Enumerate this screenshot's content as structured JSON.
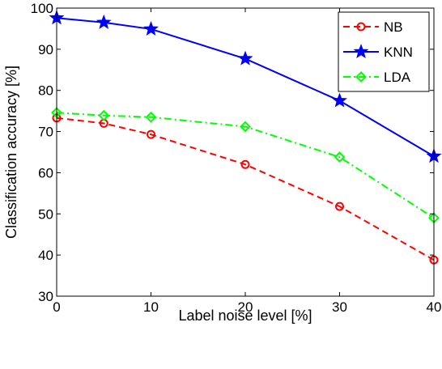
{
  "chart_data": {
    "type": "line",
    "xlabel": "Label noise level [%]",
    "ylabel": "Classification accuracy [%]",
    "xlim": [
      0,
      40
    ],
    "ylim": [
      30,
      100
    ],
    "xticks": [
      0,
      10,
      20,
      30,
      40
    ],
    "yticks": [
      30,
      40,
      50,
      60,
      70,
      80,
      90,
      100
    ],
    "grid": false,
    "legend_position": "top-right",
    "x": [
      0,
      5,
      10,
      20,
      30,
      40
    ],
    "series": [
      {
        "name": "NB",
        "values": [
          73.3,
          72.0,
          69.3,
          62.0,
          51.8,
          38.8
        ],
        "color": "#ff0000",
        "dash": "dashed",
        "marker": "circle"
      },
      {
        "name": "KNN",
        "values": [
          97.6,
          96.5,
          94.9,
          87.7,
          77.5,
          64.0
        ],
        "color": "#0000ff",
        "dash": "solid",
        "marker": "star"
      },
      {
        "name": "LDA",
        "values": [
          74.6,
          73.9,
          73.5,
          71.2,
          63.8,
          49.0
        ],
        "color": "#00ff00",
        "dash": "dashdot",
        "marker": "diamond"
      }
    ]
  }
}
